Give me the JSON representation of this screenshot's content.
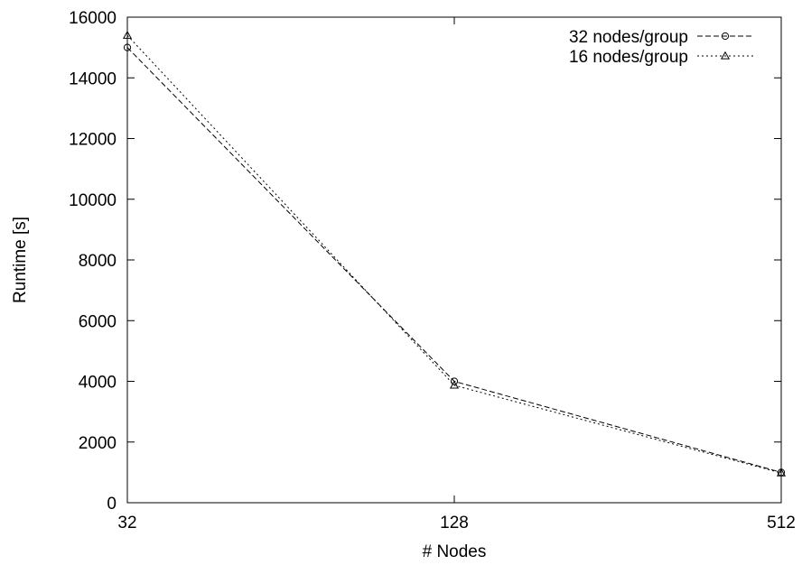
{
  "chart_data": {
    "type": "line",
    "title": "",
    "xlabel": "# Nodes",
    "ylabel": "Runtime [s]",
    "x": [
      32,
      128,
      512
    ],
    "x_ticks": [
      32,
      128,
      512
    ],
    "xlim": [
      32,
      512
    ],
    "ylim": [
      0,
      16000
    ],
    "y_ticks": [
      0,
      2000,
      4000,
      6000,
      8000,
      10000,
      12000,
      14000,
      16000
    ],
    "grid": false,
    "legend_position": "top-right",
    "series": [
      {
        "name": "32 nodes/group",
        "values": [
          15000,
          4000,
          1000
        ],
        "marker": "circle",
        "line_style": "dashed",
        "color": "#000000"
      },
      {
        "name": "16 nodes/group",
        "values": [
          15400,
          3870,
          980
        ],
        "marker": "triangle",
        "line_style": "dotted",
        "color": "#000000"
      }
    ]
  }
}
